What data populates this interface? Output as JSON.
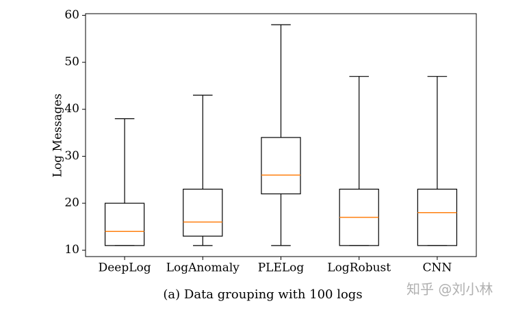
{
  "chart_data": {
    "type": "box",
    "ylabel": "Log Messages",
    "caption": "(a) Data grouping with 100 logs",
    "categories": [
      "DeepLog",
      "LogAnomaly",
      "PLELog",
      "LogRobust",
      "CNN"
    ],
    "whislo": [
      11,
      11,
      11,
      11,
      11
    ],
    "q1": [
      11,
      13,
      22,
      11,
      11
    ],
    "median": [
      14,
      16,
      26,
      17,
      18
    ],
    "q3": [
      20,
      23,
      34,
      23,
      23
    ],
    "whishi": [
      38,
      43,
      58,
      47,
      47
    ],
    "box_color": "#000000",
    "median_color": "#ff7f0e",
    "ylim": [
      8.65,
      60.35
    ],
    "yticks": [
      10,
      20,
      30,
      40,
      50,
      60
    ]
  },
  "watermark": "知乎 @刘小林"
}
